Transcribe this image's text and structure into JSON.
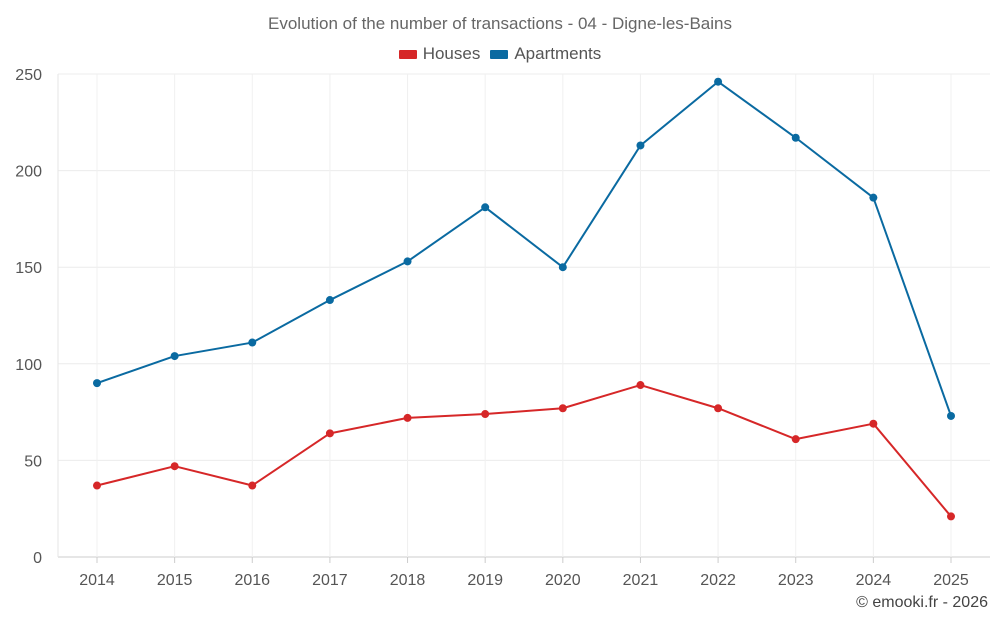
{
  "chart_data": {
    "type": "line",
    "title": "Evolution of the number of transactions - 04 - Digne-les-Bains",
    "categories": [
      "2014",
      "2015",
      "2016",
      "2017",
      "2018",
      "2019",
      "2020",
      "2021",
      "2022",
      "2023",
      "2024",
      "2025"
    ],
    "series": [
      {
        "name": "Houses",
        "color": "#d62728",
        "values": [
          37,
          47,
          37,
          64,
          72,
          74,
          77,
          89,
          77,
          61,
          69,
          21
        ]
      },
      {
        "name": "Apartments",
        "color": "#0a6aa1",
        "values": [
          90,
          104,
          111,
          133,
          153,
          181,
          150,
          213,
          246,
          217,
          186,
          73
        ]
      }
    ],
    "ylim": [
      0,
      250
    ],
    "yticks": [
      0,
      50,
      100,
      150,
      200,
      250
    ],
    "xlabel": "",
    "ylabel": "",
    "grid": true,
    "legend": "top-center"
  },
  "credit": "© emooki.fr - 2026"
}
